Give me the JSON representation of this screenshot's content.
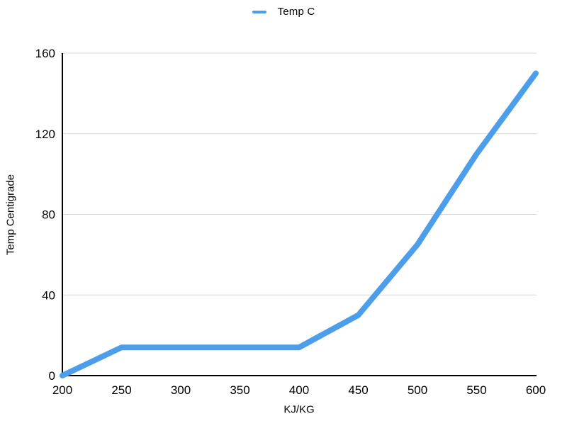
{
  "chart_data": {
    "type": "line",
    "x": [
      200,
      250,
      300,
      350,
      400,
      450,
      500,
      550,
      600
    ],
    "series": [
      {
        "name": "Temp C",
        "color": "#4D9EEA",
        "values": [
          0,
          14,
          14,
          14,
          14,
          30,
          65,
          110,
          150
        ]
      }
    ],
    "title": "",
    "xlabel": "KJ/KG",
    "ylabel": "Temp Centigrade",
    "xlim": [
      200,
      600
    ],
    "ylim": [
      0,
      160
    ],
    "xticks": [
      "200",
      "250",
      "300",
      "350",
      "400",
      "450",
      "500",
      "550",
      "600"
    ],
    "yticks": [
      "0",
      "40",
      "80",
      "120",
      "160"
    ],
    "ytick_values": [
      0,
      40,
      80,
      120,
      160
    ],
    "xtick_values": [
      200,
      250,
      300,
      350,
      400,
      450,
      500,
      550,
      600
    ],
    "grid": "horizontal-only",
    "legend_position": "top-center",
    "colors": {
      "line": "#4D9EEA",
      "gridline": "#D9D9D9",
      "axis": "#000000",
      "text": "#000000",
      "background": "#FFFFFF"
    }
  }
}
